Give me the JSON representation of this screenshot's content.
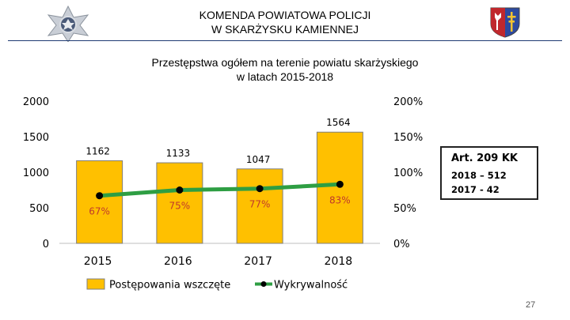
{
  "header": {
    "title_line1": "KOMENDA POWIATOWA POLICJI",
    "title_line2": "W SKARŻYSKU KAMIENNEJ"
  },
  "chart_data": {
    "type": "bar",
    "title_line1": "Przestępstwa ogółem na terenie powiatu skarżyskiego",
    "title_line2": "w latach 2015-2018",
    "categories": [
      "2015",
      "2016",
      "2017",
      "2018"
    ],
    "series": [
      {
        "name": "Postępowania wszczęte",
        "axis": "left",
        "color": "#FFC000",
        "values": [
          1162,
          1133,
          1047,
          1564
        ],
        "labels": [
          "1162",
          "1133",
          "1047",
          "1564"
        ]
      },
      {
        "name": "Wykrywalność",
        "axis": "right",
        "type": "line",
        "color": "#2E9E43",
        "values": [
          67,
          75,
          77,
          83
        ],
        "labels": [
          "67%",
          "75%",
          "77%",
          "83%"
        ]
      }
    ],
    "y_left": {
      "range": [
        0,
        2000
      ],
      "ticks": [
        "0",
        "500",
        "1000",
        "1500",
        "2000"
      ]
    },
    "y_right": {
      "range": [
        0,
        200
      ],
      "ticks": [
        "0%",
        "50%",
        "100%",
        "150%",
        "200%"
      ]
    },
    "legend_position": "bottom"
  },
  "note": {
    "title": "Art. 209 KK",
    "line1": "2018 – 512",
    "line2": "2017 - 42"
  },
  "page_number": "27",
  "colors": {
    "bar_fill": "#FFC000",
    "bar_stroke": "#7f7f7f",
    "line": "#2E9E43",
    "marker": "#000000",
    "header_rule": "#1f3b73",
    "data_label_red": "#c0392b"
  }
}
